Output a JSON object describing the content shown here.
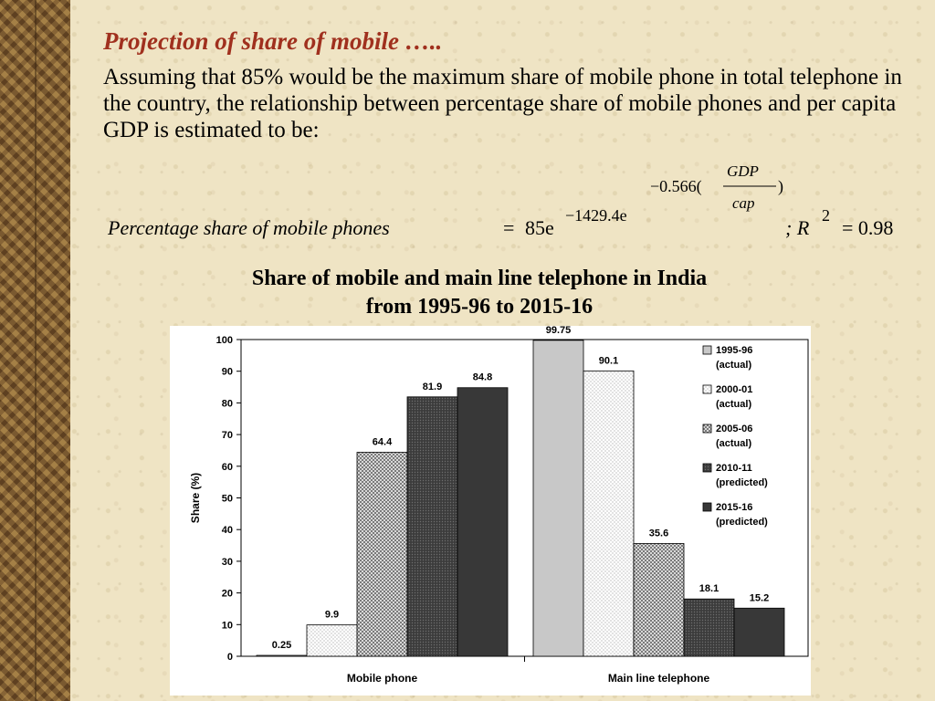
{
  "slide": {
    "title": "Projection of share of mobile …..",
    "intro": "Assuming that 85% would be the maximum share of mobile phone in total telephone in the country, the relationship between percentage share of mobile phones and per capita GDP is estimated to be:",
    "equation": {
      "lhs": "Percentage share of mobile phones",
      "equals": "=",
      "base": "85e",
      "exponent": "−1429.4e",
      "inner_exponent_prefix": "−0.566(",
      "inner_exponent_suffix": ")",
      "fraction_numerator": "GDP",
      "fraction_denominator": "cap",
      "r2_prefix": "; R",
      "r2_power": "2",
      "r2_value": "= 0.98"
    },
    "chart_title_line1": "Share of mobile and main line telephone in India",
    "chart_title_line2": "from 1995-96 to 2015-16"
  },
  "colors": {
    "title": "#a0301e",
    "series": [
      "#c8c8c8",
      "#ffffff",
      "#a0a0a0",
      "#555555",
      "#333333"
    ]
  },
  "chart_data": {
    "type": "bar",
    "title": "Share of mobile and main line telephone in India from 1995-96 to 2015-16",
    "xlabel": "",
    "ylabel": "Share (%)",
    "ylim": [
      0,
      100
    ],
    "yticks": [
      0,
      10,
      20,
      30,
      40,
      50,
      60,
      70,
      80,
      90,
      100
    ],
    "categories": [
      "Mobile phone",
      "Main line telephone"
    ],
    "series": [
      {
        "name": "1995-96 (actual)",
        "name_lines": [
          "1995-96",
          "(actual)"
        ],
        "values": [
          0.25,
          99.75
        ],
        "labels": [
          "0.25",
          "99.75"
        ]
      },
      {
        "name": "2000-01 (actual)",
        "name_lines": [
          "2000-01",
          "(actual)"
        ],
        "values": [
          9.9,
          90.1
        ],
        "labels": [
          "9.9",
          "90.1"
        ]
      },
      {
        "name": "2005-06 (actual)",
        "name_lines": [
          "2005-06",
          "(actual)"
        ],
        "values": [
          64.4,
          35.6
        ],
        "labels": [
          "64.4",
          "35.6"
        ]
      },
      {
        "name": "2010-11 (predicted)",
        "name_lines": [
          "2010-11",
          "(predicted)"
        ],
        "values": [
          81.9,
          18.1
        ],
        "labels": [
          "81.9",
          "18.1"
        ]
      },
      {
        "name": "2015-16 (predicted)",
        "name_lines": [
          "2015-16",
          "(predicted)"
        ],
        "values": [
          84.8,
          15.2
        ],
        "labels": [
          "84.8",
          "15.2"
        ]
      }
    ],
    "legend_position": "top-right",
    "grid": false
  }
}
